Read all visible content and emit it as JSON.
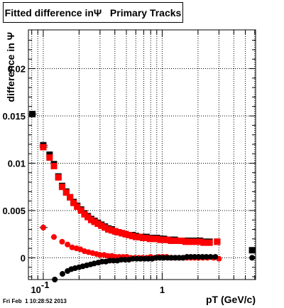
{
  "chart_data": {
    "type": "scatter",
    "title": "Fitted difference inΨ   Primary Tracks",
    "xlabel": "pT (GeV/c)",
    "ylabel": "difference in Ψ",
    "xscale": "log",
    "xlim": [
      0.075,
      6.1
    ],
    "ylim": [
      -0.0023,
      0.0241
    ],
    "grid": true,
    "x_tick_labels": [
      "10",
      "-1",
      "1"
    ],
    "y_tick_labels": [
      "0",
      "0.005",
      "0.01",
      "0.015",
      "0.02"
    ],
    "y_ticks": [
      0,
      0.005,
      0.01,
      0.015,
      0.02
    ],
    "series": [
      {
        "marker": "square",
        "color": "#000000",
        "points": [
          [
            0.081,
            0.0152
          ],
          [
            0.1,
            0.0119
          ],
          [
            0.113,
            0.0109
          ],
          [
            0.123,
            0.0099
          ],
          [
            0.134,
            0.0086
          ],
          [
            0.144,
            0.0076
          ],
          [
            0.156,
            0.007
          ],
          [
            0.168,
            0.0064
          ],
          [
            0.18,
            0.0059
          ],
          [
            0.193,
            0.0055
          ],
          [
            0.208,
            0.0051
          ],
          [
            0.222,
            0.0047
          ],
          [
            0.237,
            0.0044
          ],
          [
            0.253,
            0.0041
          ],
          [
            0.27,
            0.0039
          ],
          [
            0.288,
            0.0037
          ],
          [
            0.308,
            0.0035
          ],
          [
            0.33,
            0.0033
          ],
          [
            0.352,
            0.0031
          ],
          [
            0.377,
            0.003
          ],
          [
            0.402,
            0.0028
          ],
          [
            0.43,
            0.0027
          ],
          [
            0.46,
            0.0026
          ],
          [
            0.493,
            0.0025
          ],
          [
            0.527,
            0.0024
          ],
          [
            0.563,
            0.0024
          ],
          [
            0.602,
            0.0023
          ],
          [
            0.644,
            0.0022
          ],
          [
            0.69,
            0.0022
          ],
          [
            0.738,
            0.0022
          ],
          [
            0.79,
            0.0021
          ],
          [
            0.845,
            0.0021
          ],
          [
            0.905,
            0.0021
          ],
          [
            0.968,
            0.002
          ],
          [
            1.035,
            0.002
          ],
          [
            1.11,
            0.0019
          ],
          [
            1.19,
            0.0019
          ],
          [
            1.275,
            0.0019
          ],
          [
            1.365,
            0.0018
          ],
          [
            1.465,
            0.0018
          ],
          [
            1.57,
            0.0018
          ],
          [
            1.685,
            0.0018
          ],
          [
            1.805,
            0.0018
          ],
          [
            1.935,
            0.0018
          ],
          [
            2.08,
            0.0018
          ],
          [
            2.23,
            0.0017
          ],
          [
            2.5,
            0.0017
          ],
          [
            2.9,
            0.0017
          ],
          [
            5.7,
            0.0008
          ]
        ]
      },
      {
        "marker": "square",
        "color": "#ff0000",
        "points": [
          [
            0.1,
            0.0117
          ],
          [
            0.113,
            0.0106
          ],
          [
            0.123,
            0.0097
          ],
          [
            0.134,
            0.0085
          ],
          [
            0.144,
            0.0075
          ],
          [
            0.156,
            0.0069
          ],
          [
            0.168,
            0.0064
          ],
          [
            0.18,
            0.0058
          ],
          [
            0.193,
            0.0054
          ],
          [
            0.208,
            0.005
          ],
          [
            0.222,
            0.0046
          ],
          [
            0.237,
            0.0043
          ],
          [
            0.253,
            0.004
          ],
          [
            0.27,
            0.0038
          ],
          [
            0.288,
            0.0036
          ],
          [
            0.308,
            0.0034
          ],
          [
            0.33,
            0.0032
          ],
          [
            0.352,
            0.003
          ],
          [
            0.377,
            0.0029
          ],
          [
            0.402,
            0.0028
          ],
          [
            0.43,
            0.0027
          ],
          [
            0.46,
            0.0026
          ],
          [
            0.493,
            0.0025
          ],
          [
            0.527,
            0.0024
          ],
          [
            0.563,
            0.0023
          ],
          [
            0.602,
            0.0022
          ],
          [
            0.644,
            0.0022
          ],
          [
            0.69,
            0.0021
          ],
          [
            0.738,
            0.0021
          ],
          [
            0.79,
            0.002
          ],
          [
            0.845,
            0.002
          ],
          [
            0.905,
            0.002
          ],
          [
            0.968,
            0.0019
          ],
          [
            1.035,
            0.0019
          ],
          [
            1.11,
            0.0019
          ],
          [
            1.19,
            0.0018
          ],
          [
            1.275,
            0.0018
          ],
          [
            1.365,
            0.0018
          ],
          [
            1.465,
            0.0018
          ],
          [
            1.57,
            0.0017
          ],
          [
            1.685,
            0.0017
          ],
          [
            1.805,
            0.0017
          ],
          [
            1.935,
            0.0017
          ],
          [
            2.08,
            0.0017
          ],
          [
            2.23,
            0.0016
          ],
          [
            2.5,
            0.0016
          ],
          [
            2.9,
            0.0017
          ]
        ]
      },
      {
        "marker": "circle",
        "color": "#ff0000",
        "points": [
          [
            0.1,
            0.0032
          ],
          [
            0.123,
            0.0022
          ],
          [
            0.144,
            0.0017
          ],
          [
            0.16,
            0.0014
          ],
          [
            0.175,
            0.0011
          ],
          [
            0.19,
            0.001
          ],
          [
            0.205,
            0.0009
          ],
          [
            0.222,
            0.0007
          ],
          [
            0.24,
            0.0006
          ],
          [
            0.26,
            0.0005
          ],
          [
            0.28,
            0.0004
          ],
          [
            0.3,
            0.0003
          ],
          [
            0.325,
            0.0003
          ],
          [
            0.35,
            0.0002
          ],
          [
            0.378,
            0.0002
          ],
          [
            0.405,
            0.0001
          ],
          [
            0.435,
            0.0001
          ],
          [
            0.47,
            0.0001
          ],
          [
            0.505,
            0.0001
          ],
          [
            0.545,
            0.0
          ],
          [
            0.59,
            0.0
          ],
          [
            0.635,
            0.0
          ],
          [
            0.685,
            0.0
          ],
          [
            0.74,
            0.0
          ],
          [
            0.8,
            0.0001
          ],
          [
            0.865,
            0.0
          ],
          [
            0.935,
            0.0001
          ],
          [
            1.01,
            0.0001
          ],
          [
            1.09,
            0.0001
          ],
          [
            1.18,
            0.0
          ],
          [
            1.275,
            0.0
          ],
          [
            1.38,
            0.0
          ],
          [
            1.49,
            0.0
          ],
          [
            1.61,
            0.0
          ],
          [
            1.74,
            0.0
          ],
          [
            1.88,
            0.0
          ],
          [
            2.03,
            0.0
          ],
          [
            2.2,
            0.0
          ],
          [
            2.4,
            0.0
          ],
          [
            2.7,
            0.0
          ],
          [
            3.0,
            -0.0001
          ]
        ]
      },
      {
        "marker": "circle",
        "color": "#000000",
        "points": [
          [
            0.125,
            -0.0023
          ],
          [
            0.145,
            -0.0017
          ],
          [
            0.16,
            -0.0014
          ],
          [
            0.172,
            -0.0012
          ],
          [
            0.185,
            -0.0011
          ],
          [
            0.2,
            -0.001
          ],
          [
            0.215,
            -0.0009
          ],
          [
            0.232,
            -0.0008
          ],
          [
            0.25,
            -0.0007
          ],
          [
            0.268,
            -0.0006
          ],
          [
            0.29,
            -0.0005
          ],
          [
            0.312,
            -0.0004
          ],
          [
            0.336,
            -0.0004
          ],
          [
            0.362,
            -0.0003
          ],
          [
            0.39,
            -0.0003
          ],
          [
            0.42,
            -0.0003
          ],
          [
            0.452,
            -0.0002
          ],
          [
            0.487,
            -0.0002
          ],
          [
            0.525,
            -0.0002
          ],
          [
            0.566,
            -0.0001
          ],
          [
            0.61,
            -0.0001
          ],
          [
            0.657,
            -0.0001
          ],
          [
            0.708,
            -0.0001
          ],
          [
            0.763,
            -0.0001
          ],
          [
            0.822,
            -0.0001
          ],
          [
            0.886,
            0.0
          ],
          [
            0.955,
            0.0
          ],
          [
            1.03,
            0.0
          ],
          [
            1.11,
            0.0
          ],
          [
            1.195,
            0.0
          ],
          [
            1.29,
            0.0
          ],
          [
            1.39,
            0.0
          ],
          [
            1.5,
            0.0
          ],
          [
            1.615,
            0.0001
          ],
          [
            1.74,
            0.0001
          ],
          [
            1.875,
            0.0001
          ],
          [
            2.02,
            0.0001
          ],
          [
            2.18,
            0.0001
          ],
          [
            2.35,
            0.0001
          ],
          [
            2.55,
            0.0001
          ],
          [
            2.8,
            0.0001
          ],
          [
            5.7,
            0.0
          ]
        ]
      }
    ],
    "error_bars_x": [
      {
        "y": 0.0152,
        "x": [
          0.075,
          0.088
        ]
      },
      {
        "y": 0.0119,
        "x": [
          0.093,
          0.109
        ]
      },
      {
        "y": 0.0109,
        "x": [
          0.107,
          0.12
        ]
      },
      {
        "y": 0.0117,
        "x": [
          0.093,
          0.109
        ]
      },
      {
        "y": 0.0032,
        "x": [
          0.093,
          0.109
        ]
      },
      {
        "y": 0.0022,
        "x": [
          0.116,
          0.13
        ]
      },
      {
        "y": 0.0008,
        "x": [
          5.45,
          5.95
        ]
      },
      {
        "y": 0.0,
        "x": [
          5.45,
          5.95
        ]
      }
    ]
  },
  "footer": "Fri Feb  1 10:28:52 2013"
}
